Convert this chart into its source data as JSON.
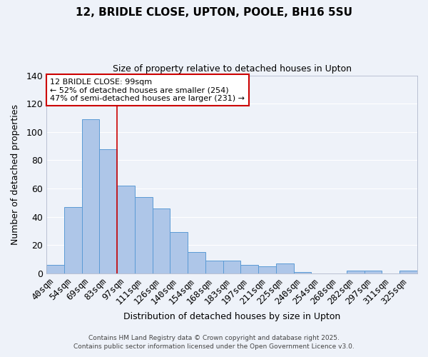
{
  "title": "12, BRIDLE CLOSE, UPTON, POOLE, BH16 5SU",
  "subtitle": "Size of property relative to detached houses in Upton",
  "xlabel": "Distribution of detached houses by size in Upton",
  "ylabel": "Number of detached properties",
  "categories": [
    "40sqm",
    "54sqm",
    "69sqm",
    "83sqm",
    "97sqm",
    "111sqm",
    "126sqm",
    "140sqm",
    "154sqm",
    "168sqm",
    "183sqm",
    "197sqm",
    "211sqm",
    "225sqm",
    "240sqm",
    "254sqm",
    "268sqm",
    "282sqm",
    "297sqm",
    "311sqm",
    "325sqm"
  ],
  "values": [
    6,
    47,
    109,
    88,
    62,
    54,
    46,
    29,
    15,
    9,
    9,
    6,
    5,
    7,
    1,
    0,
    0,
    2,
    2,
    0,
    2
  ],
  "bar_color": "#aec6e8",
  "bar_edge_color": "#5b9bd5",
  "vline_x": 3.5,
  "vline_color": "#cc0000",
  "ylim": [
    0,
    140
  ],
  "yticks": [
    0,
    20,
    40,
    60,
    80,
    100,
    120,
    140
  ],
  "annotation_title": "12 BRIDLE CLOSE: 99sqm",
  "annotation_line1": "← 52% of detached houses are smaller (254)",
  "annotation_line2": "47% of semi-detached houses are larger (231) →",
  "annotation_box_color": "#ffffff",
  "annotation_box_edge": "#cc0000",
  "background_color": "#eef2f9",
  "grid_color": "#ffffff",
  "footer1": "Contains HM Land Registry data © Crown copyright and database right 2025.",
  "footer2": "Contains public sector information licensed under the Open Government Licence v3.0."
}
